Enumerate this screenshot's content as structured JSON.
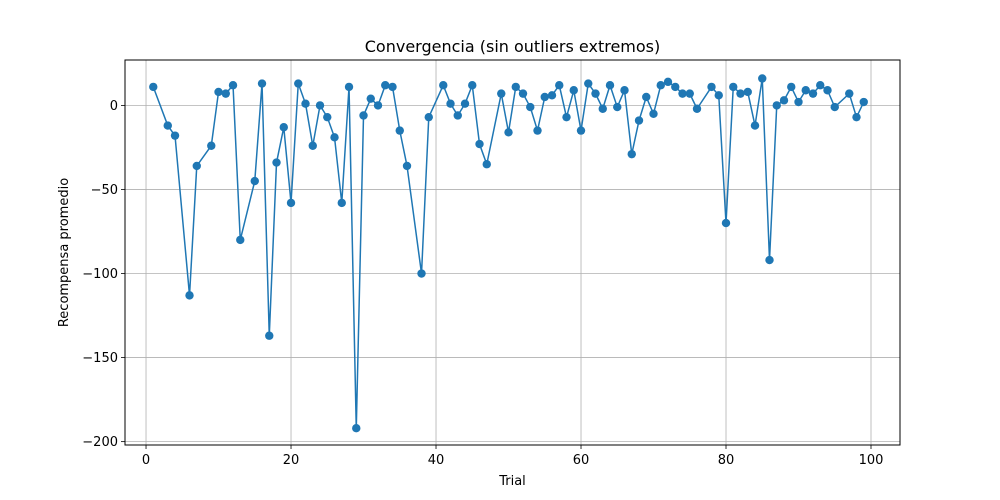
{
  "chart_data": {
    "type": "line",
    "title": "Convergencia (sin outliers extremos)",
    "xlabel": "Trial",
    "ylabel": "Recompensa promedio",
    "xlim": [
      -2.9,
      104
    ],
    "ylim": [
      -202,
      27
    ],
    "x_ticks": [
      0,
      20,
      40,
      60,
      80,
      100
    ],
    "y_ticks": [
      0,
      -50,
      -100,
      -150,
      -200
    ],
    "x_tick_labels": [
      "0",
      "20",
      "40",
      "60",
      "80",
      "100"
    ],
    "y_tick_labels": [
      "0",
      "−50",
      "−100",
      "−150",
      "−200"
    ],
    "grid": true,
    "marker": "circle",
    "series": [
      {
        "color": "#1f77b4",
        "x": [
          1,
          3,
          4,
          6,
          7,
          9,
          10,
          11,
          12,
          13,
          15,
          16,
          17,
          18,
          19,
          20,
          21,
          22,
          23,
          24,
          25,
          26,
          27,
          28,
          29,
          30,
          31,
          32,
          33,
          34,
          35,
          36,
          38,
          39,
          41,
          42,
          43,
          44,
          45,
          46,
          47,
          49,
          50,
          51,
          52,
          53,
          54,
          55,
          56,
          57,
          58,
          59,
          60,
          61,
          62,
          63,
          64,
          65,
          66,
          67,
          68,
          69,
          70,
          71,
          72,
          73,
          74,
          75,
          76,
          78,
          79,
          80,
          81,
          82,
          83,
          84,
          85,
          86,
          87,
          88,
          89,
          90,
          91,
          92,
          93,
          94,
          95,
          97,
          98,
          99
        ],
        "y": [
          11,
          -12,
          -18,
          -113,
          -36,
          -24,
          8,
          7,
          12,
          -80,
          -45,
          13,
          -137,
          -34,
          -13,
          -58,
          13,
          1,
          -24,
          0,
          -7,
          -19,
          -58,
          11,
          -192,
          -6,
          4,
          0,
          12,
          11,
          -15,
          -36,
          -100,
          -7,
          12,
          1,
          -6,
          1,
          12,
          -23,
          -35,
          7,
          -16,
          11,
          7,
          -1,
          -15,
          5,
          6,
          12,
          -7,
          9,
          -15,
          13,
          7,
          -2,
          12,
          -1,
          9,
          -29,
          -9,
          5,
          -5,
          12,
          14,
          11,
          7,
          7,
          -2,
          11,
          6,
          -70,
          11,
          7,
          8,
          -12,
          16,
          -92,
          0,
          3,
          11,
          2,
          9,
          7,
          12,
          9,
          -1,
          7,
          -7,
          2
        ]
      }
    ]
  }
}
